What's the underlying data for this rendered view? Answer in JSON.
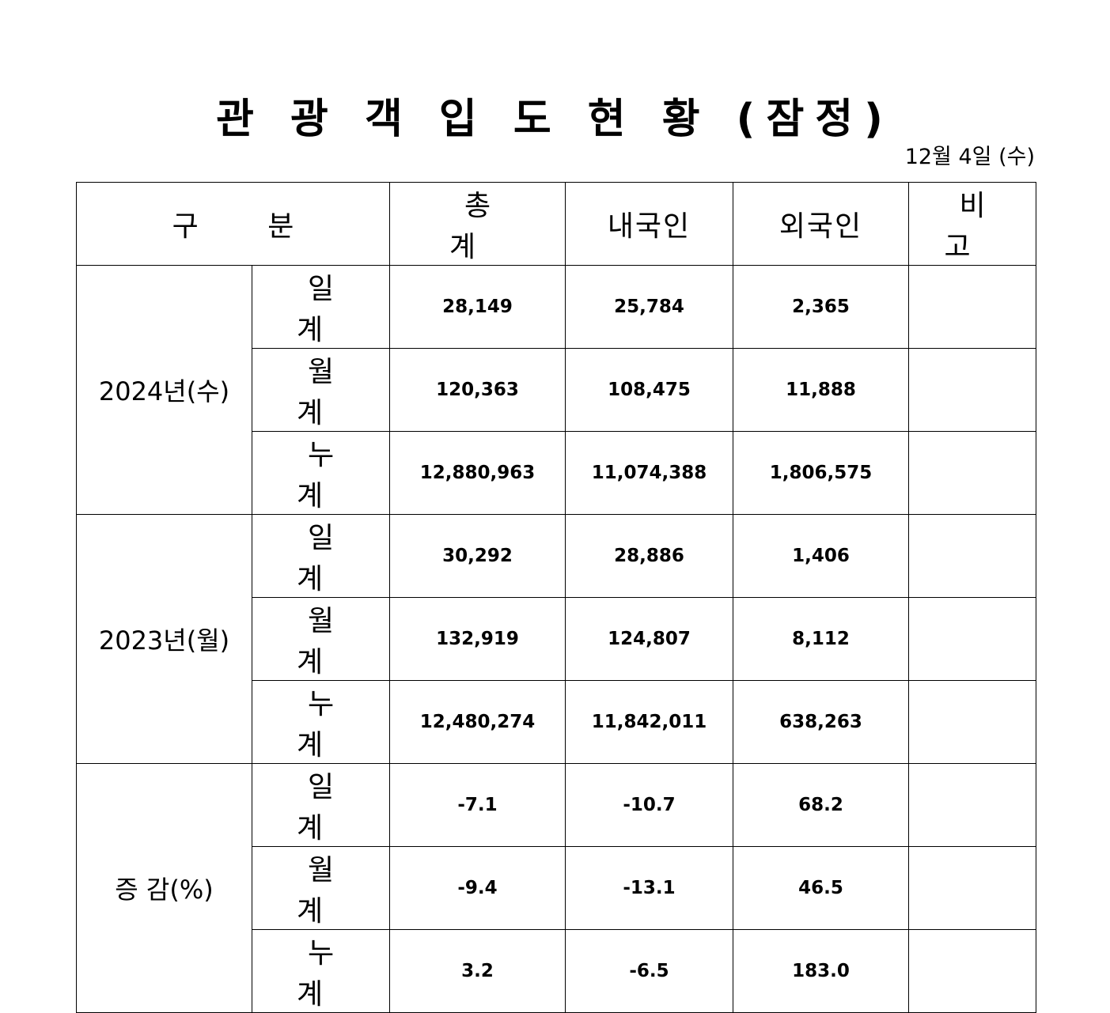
{
  "title": "관 광 객 입 도 현 황 (잠정)",
  "date": "12월 4일 (수)",
  "headers": {
    "category": "구 분",
    "total": "총 계",
    "domestic": "내국인",
    "foreign": "외국인",
    "remarks": "비 고"
  },
  "groups": [
    {
      "label": "2024년(수)",
      "rows": [
        {
          "sub": "일 계",
          "total": "28,149",
          "domestic": "25,784",
          "foreign": "2,365",
          "remarks": ""
        },
        {
          "sub": "월 계",
          "total": "120,363",
          "domestic": "108,475",
          "foreign": "11,888",
          "remarks": ""
        },
        {
          "sub": "누 계",
          "total": "12,880,963",
          "domestic": "11,074,388",
          "foreign": "1,806,575",
          "remarks": ""
        }
      ]
    },
    {
      "label": "2023년(월)",
      "rows": [
        {
          "sub": "일 계",
          "total": "30,292",
          "domestic": "28,886",
          "foreign": "1,406",
          "remarks": ""
        },
        {
          "sub": "월 계",
          "total": "132,919",
          "domestic": "124,807",
          "foreign": "8,112",
          "remarks": ""
        },
        {
          "sub": "누 계",
          "total": "12,480,274",
          "domestic": "11,842,011",
          "foreign": "638,263",
          "remarks": ""
        }
      ]
    },
    {
      "label": "증 감(%)",
      "rows": [
        {
          "sub": "일 계",
          "total": "-7.1",
          "domestic": "-10.7",
          "foreign": "68.2",
          "remarks": ""
        },
        {
          "sub": "월 계",
          "total": "-9.4",
          "domestic": "-13.1",
          "foreign": "46.5",
          "remarks": ""
        },
        {
          "sub": "누 계",
          "total": "3.2",
          "domestic": "-6.5",
          "foreign": "183.0",
          "remarks": ""
        }
      ]
    }
  ]
}
